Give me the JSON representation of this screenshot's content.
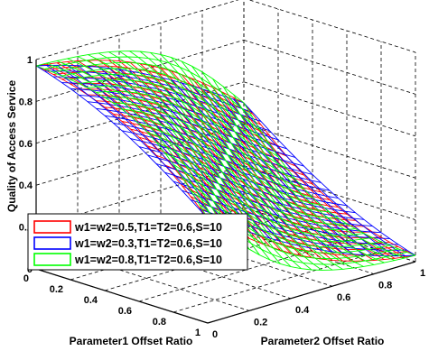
{
  "chart_data": {
    "type": "surface",
    "title": "",
    "xlabel": "Parameter1 Offset Ratio",
    "ylabel": "Parameter2 Offset Ratio",
    "zlabel": "Quality of Access Service",
    "xlim": [
      0,
      1
    ],
    "ylim": [
      0,
      1
    ],
    "zlim": [
      0,
      1
    ],
    "x_ticks": [
      "0",
      "0.2",
      "0.4",
      "0.6",
      "0.8",
      "1"
    ],
    "y_ticks": [
      "0",
      "0.2",
      "0.4",
      "0.6",
      "0.8",
      "1"
    ],
    "z_ticks": [
      "0",
      "0.2",
      "0.4",
      "0.6",
      "0.8",
      "1"
    ],
    "grid": true,
    "legend_position": "bottom-left",
    "grid_points": [
      0,
      0.05,
      0.1,
      0.15,
      0.2,
      0.25,
      0.3,
      0.35,
      0.4,
      0.45,
      0.5,
      0.55,
      0.6,
      0.65,
      0.7,
      0.75,
      0.8,
      0.85,
      0.9,
      0.95,
      1
    ],
    "series": [
      {
        "name": "w1=w2=0.5,T1=T2=0.6,S=10",
        "color": "#ff0000",
        "w": 0.5,
        "T": 0.6,
        "S": 10
      },
      {
        "name": "w1=w2=0.3,T1=T2=0.6,S=10",
        "color": "#0000ff",
        "w": 0.3,
        "T": 0.6,
        "S": 10
      },
      {
        "name": "w1=w2=0.8,T1=T2=0.6,S=10",
        "color": "#00ff00",
        "w": 0.8,
        "T": 0.6,
        "S": 10
      }
    ]
  }
}
